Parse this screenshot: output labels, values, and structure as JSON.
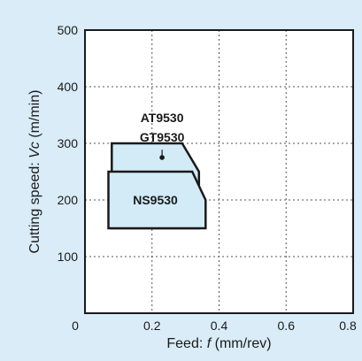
{
  "chart_data": {
    "type": "area",
    "title": "",
    "xlabel": {
      "prefix": "Feed: ",
      "symbol": "f",
      "unit": " (mm/rev)"
    },
    "ylabel": {
      "prefix": "Cutting speed: ",
      "symbol": "Vc",
      "unit": " (m/min)"
    },
    "xlim": [
      0,
      0.8
    ],
    "ylim": [
      0,
      500
    ],
    "xticks": [
      0,
      0.2,
      0.4,
      0.6,
      0.8
    ],
    "xtick_labels": [
      "0",
      "0.2",
      "0.4",
      "0.6",
      "0.8"
    ],
    "yticks": [
      100,
      200,
      300,
      400,
      500
    ],
    "ytick_labels": [
      "100",
      "200",
      "300",
      "400",
      "500"
    ],
    "grid": true,
    "regions": [
      {
        "name": "AT9530 / GT9530",
        "label_lines": [
          "AT9530",
          "GT9530"
        ],
        "points": [
          [
            0.08,
            150
          ],
          [
            0.08,
            300
          ],
          [
            0.29,
            300
          ],
          [
            0.34,
            250
          ],
          [
            0.34,
            150
          ]
        ],
        "marker": [
          0.23,
          275
        ],
        "label_pos": [
          0.23,
          345
        ],
        "fill": "#d2ebf7"
      },
      {
        "name": "NS9530",
        "label_lines": [
          "NS9530"
        ],
        "points": [
          [
            0.07,
            150
          ],
          [
            0.07,
            250
          ],
          [
            0.32,
            250
          ],
          [
            0.36,
            200
          ],
          [
            0.36,
            150
          ]
        ],
        "label_pos": [
          0.21,
          200
        ],
        "fill": "#d2ebf7"
      }
    ]
  }
}
